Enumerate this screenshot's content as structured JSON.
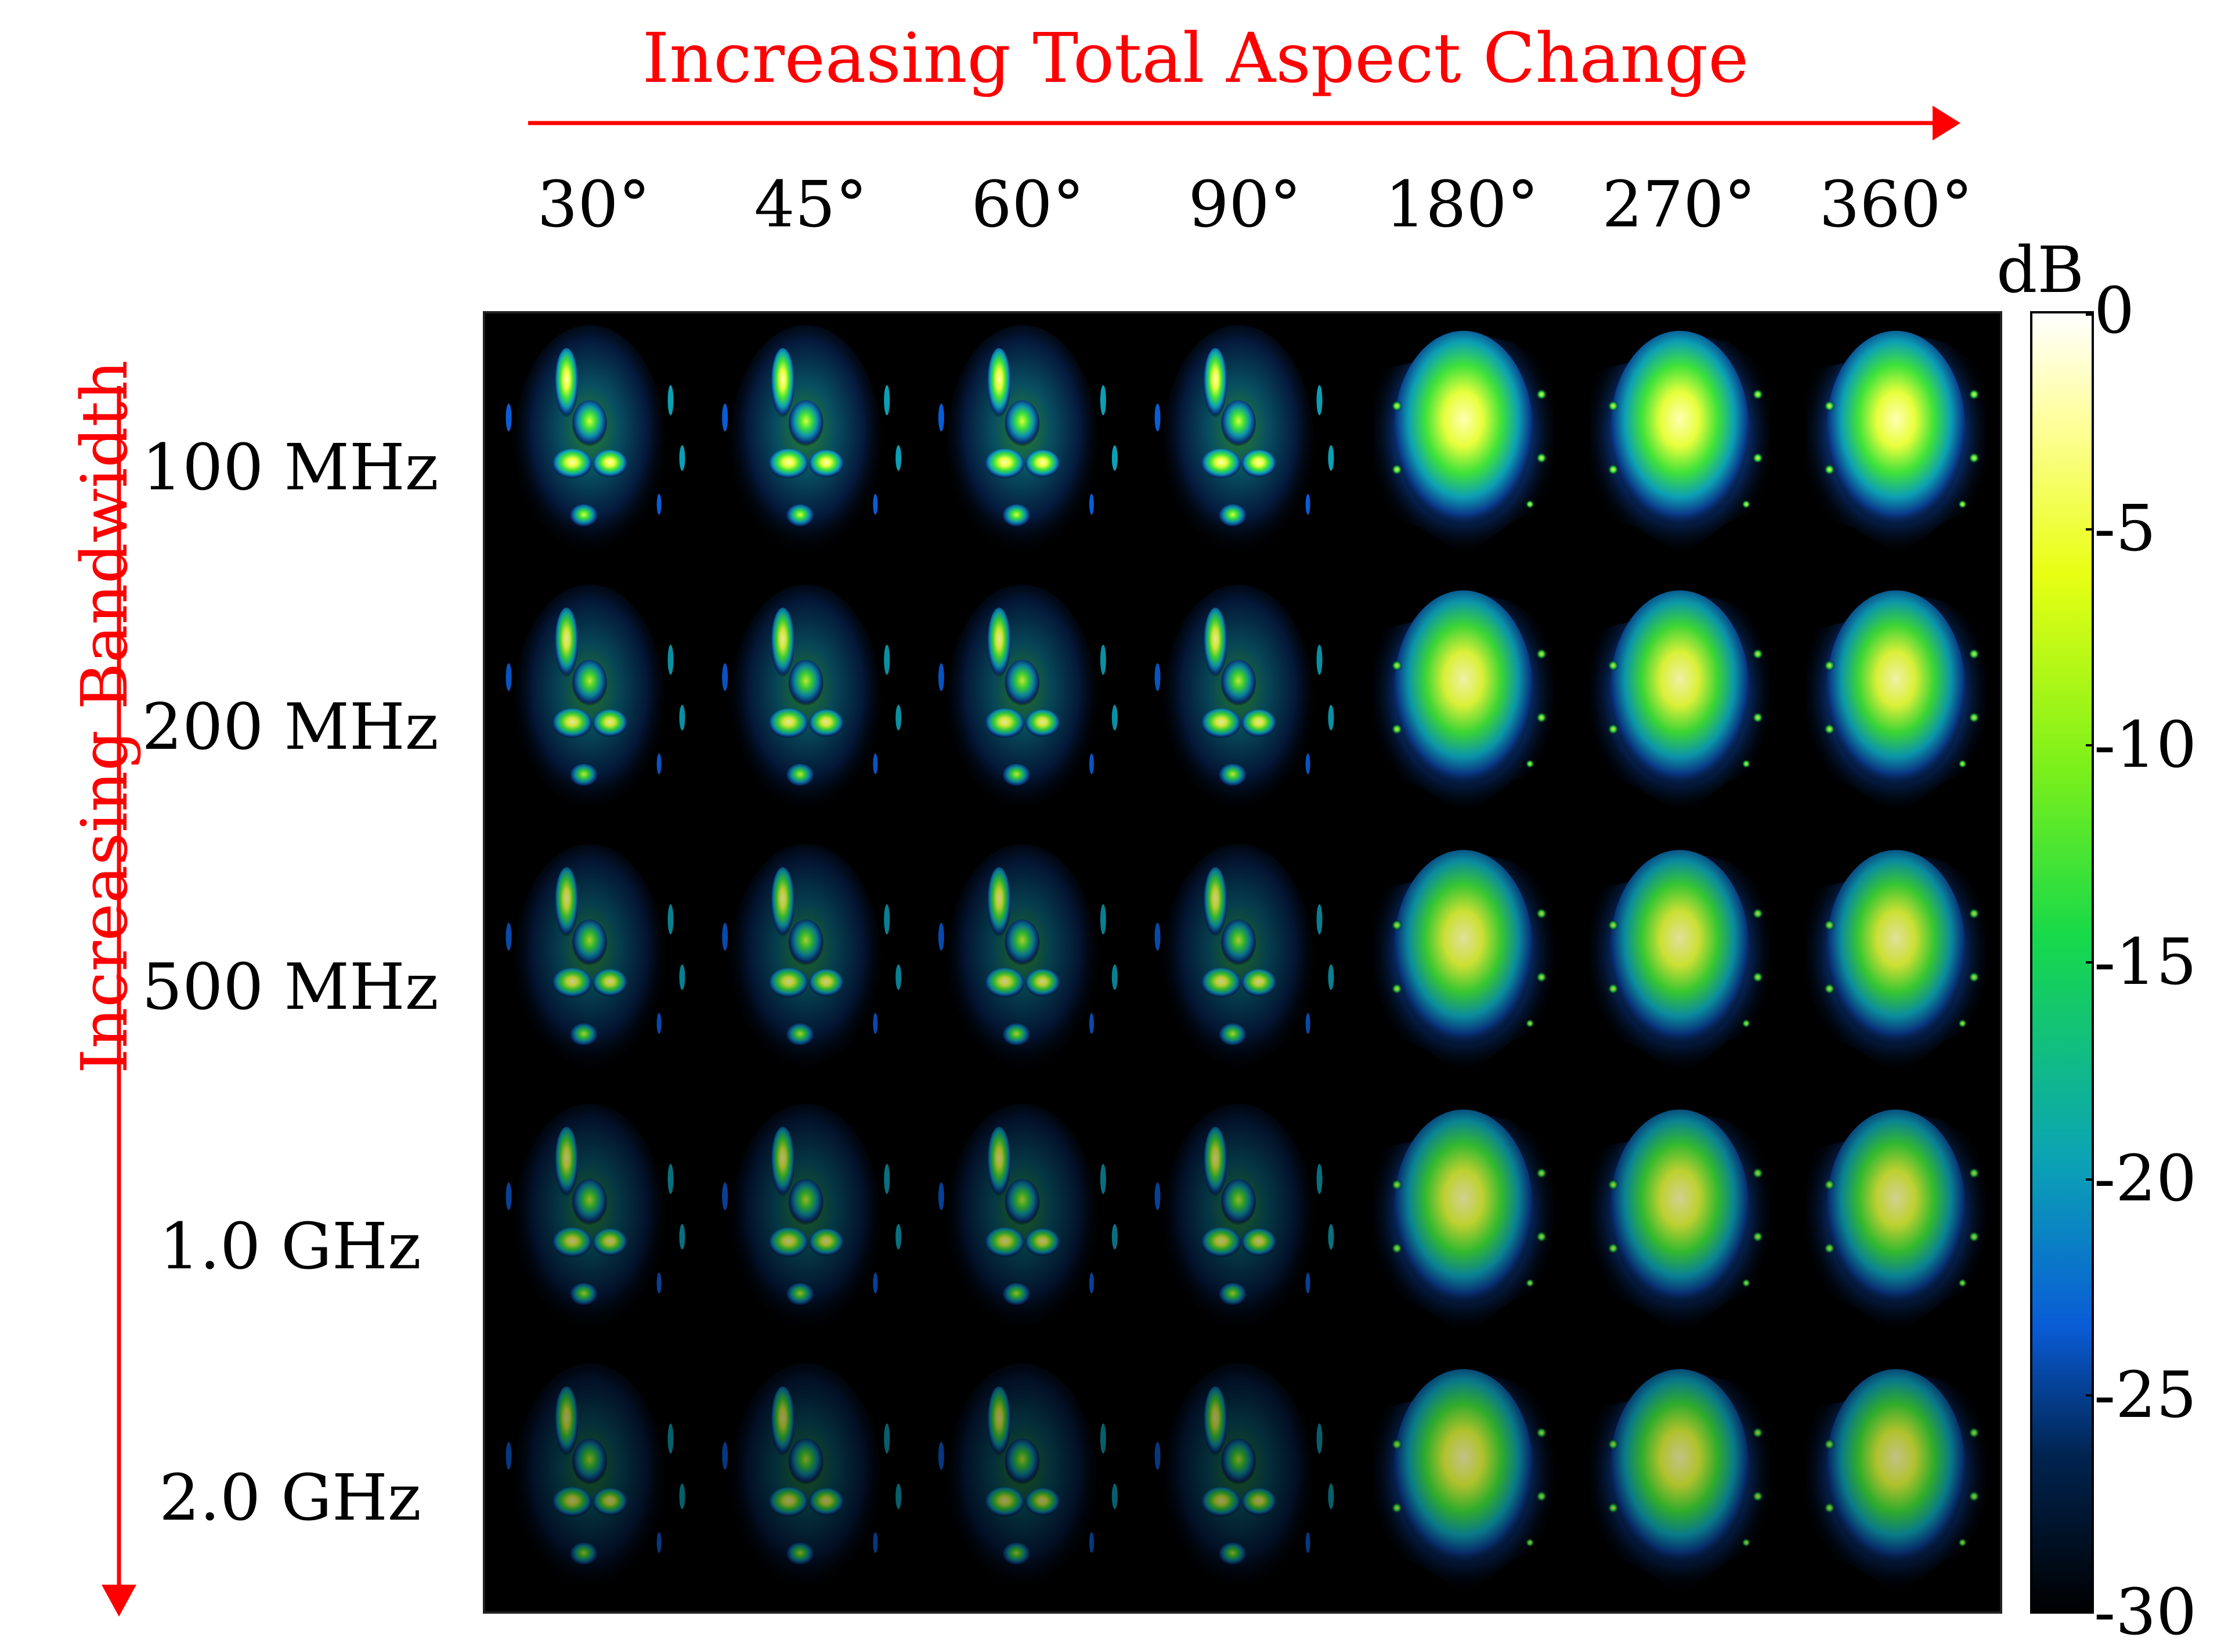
{
  "colors": {
    "annotation": "#ff0000",
    "background": "#000000"
  },
  "title_top": "Increasing Total Aspect Change",
  "title_side": "Increasing Bandwidth",
  "columns": [
    "30°",
    "45°",
    "60°",
    "90°",
    "180°",
    "270°",
    "360°"
  ],
  "rows": [
    "100 MHz",
    "200 MHz",
    "500 MHz",
    "1.0 GHz",
    "2.0 GHz"
  ],
  "colorbar": {
    "unit": "dB",
    "ticks": [
      "0",
      "-5",
      "-10",
      "-15",
      "-20",
      "-25",
      "-30"
    ],
    "range": [
      -30,
      0
    ]
  }
}
